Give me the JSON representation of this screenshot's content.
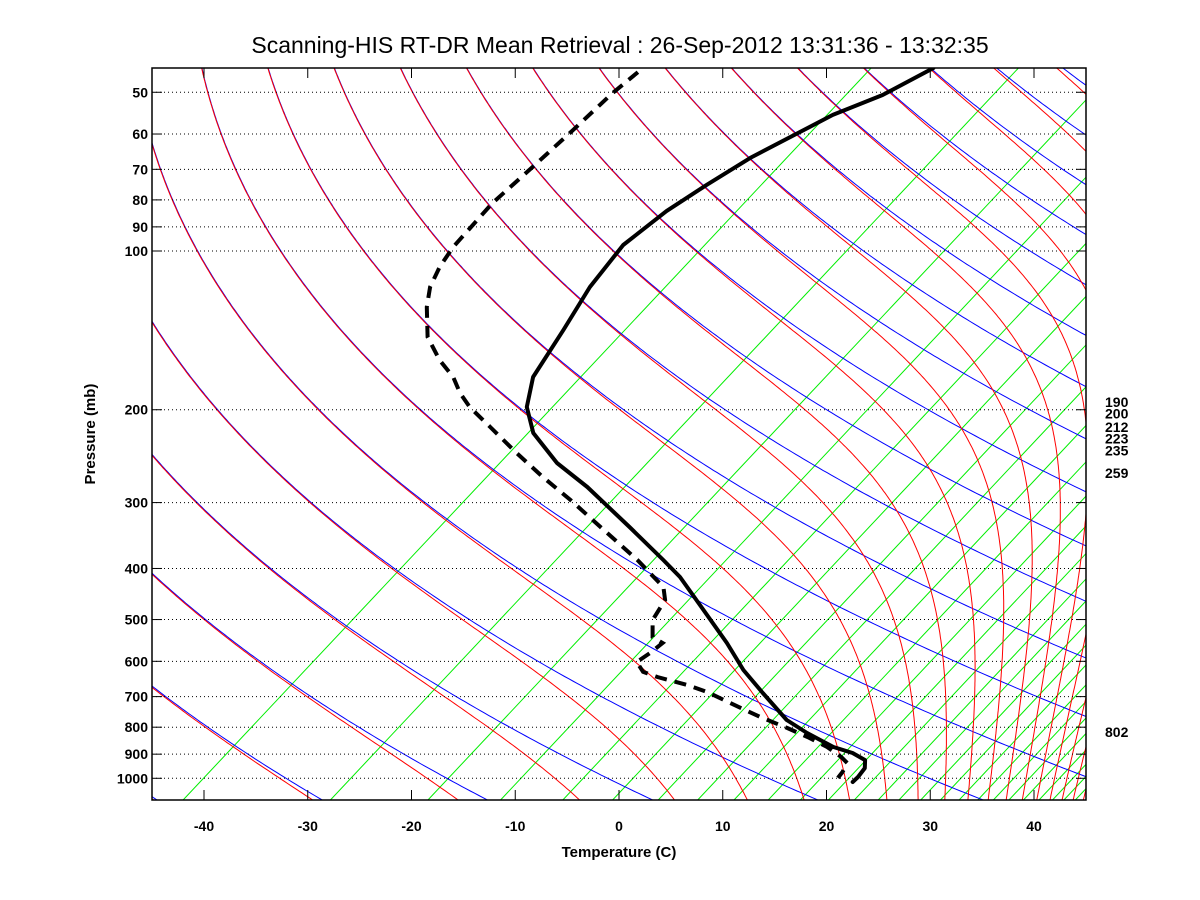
{
  "chart_data": {
    "type": "line",
    "title": "Scanning-HIS RT-DR Mean Retrieval : 26-Sep-2012 13:31:36 - 13:32:35",
    "xlabel": "Temperature (C)",
    "ylabel": "Pressure (mb)",
    "xlim": [
      -45,
      45
    ],
    "ylim": [
      1100,
      45
    ],
    "y_scale": "log",
    "grid": "horizontal-dotted",
    "x_ticks": [
      -40,
      -30,
      -20,
      -10,
      0,
      10,
      20,
      30,
      40
    ],
    "x_tick_labels": [
      "-40",
      "-30",
      "-20",
      "-10",
      "0",
      "10",
      "20",
      "30",
      "40"
    ],
    "y_ticks": [
      50,
      60,
      70,
      80,
      90,
      100,
      200,
      300,
      400,
      500,
      600,
      700,
      800,
      900,
      1000
    ],
    "y_tick_labels": [
      "50",
      "60",
      "70",
      "80",
      "90",
      "100",
      "200",
      "300",
      "400",
      "500",
      "600",
      "700",
      "800",
      "900",
      "1000"
    ],
    "right_labels": [
      "190",
      "200",
      "212",
      "223",
      "235",
      "259",
      "802"
    ],
    "right_label_pressures": [
      190,
      200,
      212,
      223,
      235,
      259,
      802
    ],
    "series": {
      "temperature": {
        "points": [
          [
            45.0,
            -72.7
          ],
          [
            50.6,
            -73.8
          ],
          [
            55.2,
            -75.8
          ],
          [
            66.6,
            -77.7
          ],
          [
            75.0,
            -78.1
          ],
          [
            84.0,
            -78.3
          ],
          [
            97.4,
            -77.7
          ],
          [
            117.0,
            -75.0
          ],
          [
            141.2,
            -71.5
          ],
          [
            173.4,
            -67.8
          ],
          [
            197.6,
            -64.2
          ],
          [
            221.4,
            -59.9
          ],
          [
            252.4,
            -53.4
          ],
          [
            280.3,
            -47.1
          ],
          [
            333.8,
            -37.4
          ],
          [
            385.5,
            -29.5
          ],
          [
            415.2,
            -25.5
          ],
          [
            479.5,
            -18.6
          ],
          [
            553.8,
            -11.7
          ],
          [
            623.2,
            -6.3
          ],
          [
            688.9,
            -1.2
          ],
          [
            775.2,
            4.9
          ],
          [
            820.6,
            8.7
          ],
          [
            872.2,
            13.2
          ],
          [
            895.5,
            15.9
          ],
          [
            923.5,
            18.1
          ],
          [
            956.3,
            19.2
          ],
          [
            994.4,
            19.8
          ],
          [
            1016.5,
            20.0
          ]
        ]
      },
      "dewpoint": {
        "points": [
          [
            45.8,
            -100.6
          ],
          [
            50.2,
            -100.1
          ],
          [
            59.0,
            -98.7
          ],
          [
            69.3,
            -97.4
          ],
          [
            81.1,
            -96.2
          ],
          [
            98.3,
            -93.8
          ],
          [
            107.2,
            -92.3
          ],
          [
            117.0,
            -90.4
          ],
          [
            127.7,
            -87.9
          ],
          [
            145.6,
            -83.6
          ],
          [
            161.0,
            -79.2
          ],
          [
            173.4,
            -75.5
          ],
          [
            185.9,
            -72.6
          ],
          [
            197.6,
            -69.7
          ],
          [
            215.7,
            -64.9
          ],
          [
            241.6,
            -58.7
          ],
          [
            268.3,
            -52.8
          ],
          [
            296.6,
            -46.9
          ],
          [
            333.8,
            -40.2
          ],
          [
            385.5,
            -32.0
          ],
          [
            433.7,
            -25.7
          ],
          [
            459.1,
            -23.7
          ],
          [
            500.9,
            -22.1
          ],
          [
            539.6,
            -19.7
          ],
          [
            553.8,
            -17.9
          ],
          [
            578.6,
            -17.7
          ],
          [
            601.9,
            -17.7
          ],
          [
            628.5,
            -15.7
          ],
          [
            642.6,
            -13.6
          ],
          [
            665.4,
            -9.6
          ],
          [
            686.0,
            -6.7
          ],
          [
            720.0,
            -2.9
          ],
          [
            765.0,
            1.9
          ],
          [
            803.0,
            6.1
          ],
          [
            835.0,
            9.3
          ],
          [
            872.2,
            12.6
          ],
          [
            911.5,
            15.4
          ],
          [
            935.6,
            16.8
          ],
          [
            972.9,
            17.6
          ],
          [
            998.5,
            18.0
          ]
        ]
      }
    },
    "background": {
      "dry_adiabats_theta_K": [
        222.5,
        238,
        253.5,
        269,
        284.5,
        300,
        315.5,
        331,
        346.5,
        362,
        377.5,
        393,
        408.5,
        424,
        439.5,
        455,
        470.5,
        486,
        501.5,
        517,
        532.5
      ],
      "moist_adiabats_theta_K": [
        222.5,
        238,
        253.5,
        269,
        284.5,
        300,
        315.5,
        331,
        346.5,
        362,
        377.5,
        393,
        408.5,
        424,
        439.5,
        455,
        470.5,
        486,
        501.5,
        517,
        532.5
      ],
      "mixing_ratio_lines_base_temp_C": [
        -42.0,
        -27.8,
        -18.4,
        -11.4,
        -5.4,
        -0.6,
        3.8,
        7.6,
        11.1,
        14.4,
        17.5,
        20.2,
        22.7,
        25.0,
        27.0,
        29.1,
        31.0,
        32.8,
        34.6,
        36.1,
        37.6,
        39.0,
        40.5,
        41.8,
        42.9,
        44.0
      ]
    }
  },
  "colors": {
    "dry_adiabat": "#0000ff",
    "moist_adiabat": "#ff0000",
    "mixing_ratio": "#00ee00",
    "sounding": "#000000",
    "grid": "#000000"
  }
}
